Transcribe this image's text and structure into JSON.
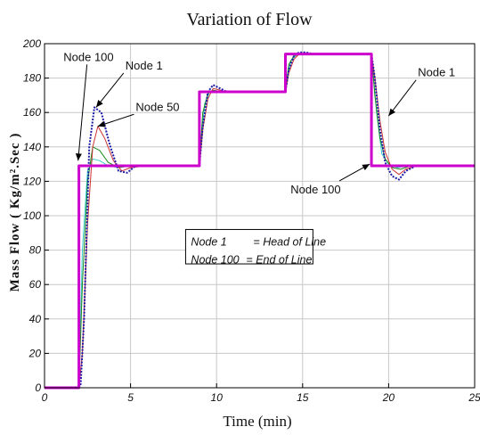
{
  "chart_data": {
    "type": "line",
    "title": "Variation of Flow",
    "xlabel": "Time (min)",
    "ylabel": "Mass Flow ( Kg/m².Sec )",
    "xlim": [
      0,
      25
    ],
    "ylim": [
      0,
      200
    ],
    "xticks": [
      0,
      5,
      10,
      15,
      20,
      25
    ],
    "yticks": [
      0,
      20,
      40,
      60,
      80,
      100,
      120,
      140,
      160,
      180,
      200
    ],
    "grid": true,
    "series": [
      {
        "name": "Node 100",
        "color": "#cc00cc",
        "x": [
          0,
          2.0,
          2.0,
          9.0,
          9.0,
          14.0,
          14.0,
          19.0,
          19.0,
          25
        ],
        "y": [
          0,
          0,
          129,
          129,
          172,
          172,
          194,
          194,
          129,
          129
        ]
      },
      {
        "name": "Node 50",
        "color": "#cc3333",
        "x": [
          0,
          2.0,
          2.2,
          2.5,
          2.8,
          3.1,
          3.5,
          4.0,
          4.5,
          5.0,
          6.0,
          9.0,
          9.2,
          9.5,
          9.8,
          10.2,
          10.6,
          11.2,
          14.0,
          14.2,
          14.5,
          14.8,
          15.2,
          15.6,
          16.2,
          19.0,
          19.2,
          19.5,
          19.8,
          20.2,
          20.6,
          21.0,
          21.6,
          25
        ],
        "y": [
          0,
          0,
          20,
          95,
          140,
          152,
          145,
          132,
          126,
          128,
          129,
          129,
          150,
          168,
          174,
          173,
          172,
          172,
          172,
          183,
          191,
          194,
          194.5,
          194,
          194,
          194,
          180,
          155,
          137,
          127,
          124,
          127,
          129,
          129
        ]
      },
      {
        "name": "Node 1",
        "color": "#1a1aa6",
        "x": [
          0,
          2.0,
          2.1,
          2.3,
          2.6,
          2.9,
          3.3,
          3.8,
          4.3,
          4.8,
          5.3,
          6.0,
          9.0,
          9.2,
          9.5,
          9.8,
          10.2,
          10.6,
          11.2,
          14.0,
          14.2,
          14.5,
          14.8,
          15.2,
          15.6,
          16.2,
          19.0,
          19.2,
          19.5,
          19.8,
          20.2,
          20.6,
          21.0,
          21.6,
          25
        ],
        "y": [
          0,
          0,
          2,
          40,
          140,
          163,
          160,
          141,
          126,
          125,
          129,
          129,
          129,
          152,
          172,
          176,
          174,
          172,
          172,
          172,
          185,
          193,
          195,
          195,
          194,
          194,
          194,
          180,
          150,
          131,
          123,
          121,
          126,
          129,
          129
        ]
      },
      {
        "name": "",
        "color": "#1a8a1a",
        "x": [
          0,
          2.0,
          2.2,
          2.5,
          2.8,
          3.2,
          3.7,
          4.3,
          5.0,
          6.0,
          9.0,
          9.2,
          9.5,
          9.8,
          10.3,
          11.0,
          14.0,
          14.2,
          14.5,
          14.9,
          15.4,
          16.0,
          19.0,
          19.2,
          19.5,
          19.8,
          20.2,
          20.7,
          21.3,
          25
        ],
        "y": [
          0,
          0,
          60,
          120,
          140,
          138,
          131,
          128,
          129,
          129,
          129,
          160,
          171,
          173,
          172,
          172,
          172,
          188,
          193,
          194,
          194,
          194,
          194,
          170,
          145,
          133,
          128,
          127,
          129,
          129
        ]
      },
      {
        "name": "",
        "color": "#33cccc",
        "x": [
          0,
          2.0,
          2.2,
          2.5,
          2.8,
          3.2,
          3.7,
          4.3,
          5.0,
          9.0,
          9.3,
          9.6,
          10.0,
          10.5,
          14.0,
          14.3,
          14.7,
          15.2,
          19.0,
          19.3,
          19.6,
          20.0,
          20.5,
          21.2,
          25
        ],
        "y": [
          0,
          0,
          80,
          126,
          133,
          132,
          129,
          128,
          129,
          129,
          165,
          172,
          172,
          172,
          172,
          190,
          194,
          194,
          194,
          160,
          136,
          130,
          128,
          129,
          129
        ]
      }
    ],
    "annotations": [
      {
        "text": "Node 100",
        "x": 1.1,
        "y": 190,
        "target_x": 1.95,
        "target_y": 132
      },
      {
        "text": "Node 1",
        "x": 4.7,
        "y": 185,
        "target_x": 3.0,
        "target_y": 163
      },
      {
        "text": "Node 50",
        "x": 5.3,
        "y": 161,
        "target_x": 3.1,
        "target_y": 152
      },
      {
        "text": "Node 1",
        "x": 21.7,
        "y": 181,
        "target_x": 20.0,
        "target_y": 158
      },
      {
        "text": "Node 100",
        "x": 14.3,
        "y": 113,
        "target_x": 18.9,
        "target_y": 130
      }
    ],
    "legend_box": {
      "lines": [
        {
          "node": "Node 1",
          "desc": "= Head of Line"
        },
        {
          "node": "Node 100",
          "desc": "= End of Line"
        }
      ]
    }
  }
}
